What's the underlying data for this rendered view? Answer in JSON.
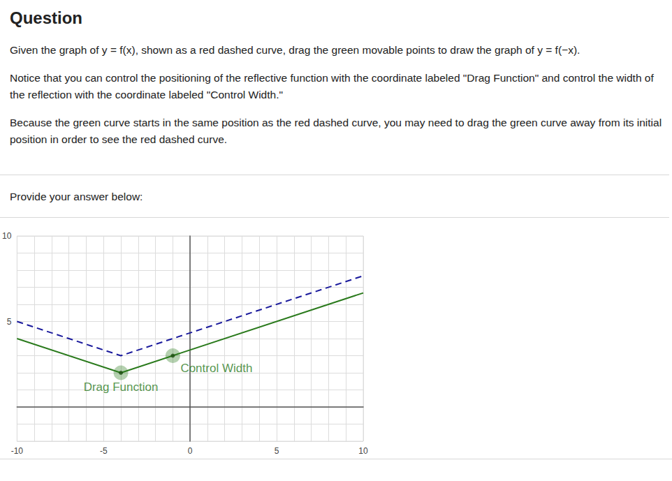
{
  "question": {
    "heading": "Question",
    "paragraphs": [
      "Given the graph of y = f(x), shown as a red dashed curve, drag the green movable points to draw the graph of y = f(−x).",
      "Notice that you can control the positioning of the reflective function with the coordinate labeled \"Drag Function\" and control the width of the reflection with the coordinate labeled \"Control Width.\"",
      "Because the green curve starts in the same position as the red dashed curve, you may need to drag the green curve away from its initial position in order to see the red dashed curve."
    ],
    "prompt": "Provide your answer below:"
  },
  "chart_data": {
    "type": "line",
    "xlim": [
      -10,
      10
    ],
    "ylim": [
      -2,
      10
    ],
    "xticks": [
      -10,
      -5,
      0,
      5,
      10
    ],
    "yticks": [
      5,
      10
    ],
    "grid": true,
    "series": [
      {
        "type": "line",
        "color": "#1a1a9c",
        "line_style": "dashed",
        "x": [
          -10,
          -4,
          10
        ],
        "values": [
          5,
          3,
          7.67
        ]
      },
      {
        "type": "line",
        "color": "#2a7a1c",
        "line_style": "solid",
        "x": [
          -10,
          -4,
          10
        ],
        "values": [
          4,
          2,
          6.67
        ]
      },
      {
        "type": "scatter",
        "color": "#2a7a1c",
        "marker": "circle",
        "x": [
          -4,
          -1
        ],
        "values": [
          2,
          3
        ],
        "labels": [
          "Drag Function",
          "Control Width"
        ]
      }
    ]
  }
}
